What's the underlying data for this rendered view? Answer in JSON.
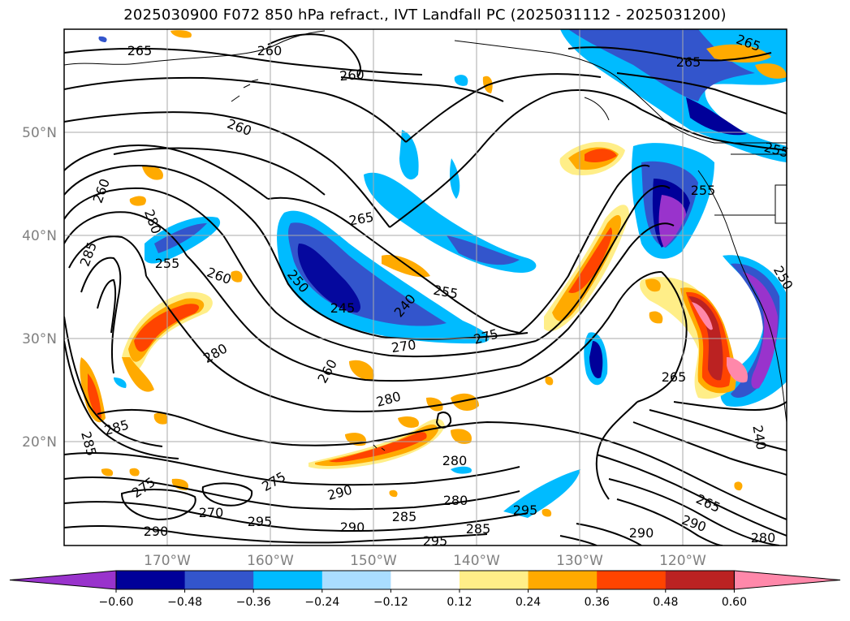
{
  "title": "2025030900 F072 850 hPa refract., IVT Landfall PC (2025031112 - 2025031200)",
  "lat_labels": [
    "50°N",
    "40°N",
    "30°N",
    "20°N"
  ],
  "lon_labels": [
    "170°W",
    "160°W",
    "150°W",
    "140°W",
    "130°W",
    "120°W"
  ],
  "colorbar": {
    "ticks": [
      "−0.60",
      "−0.48",
      "−0.36",
      "−0.24",
      "−0.12",
      "0.12",
      "0.24",
      "0.36",
      "0.48",
      "0.60"
    ],
    "colors": [
      "#9933cc",
      "#000099",
      "#3355cc",
      "#00bbff",
      "#aaddff",
      "#ffffff",
      "#ffee88",
      "#ffaa00",
      "#ff4400",
      "#bb2222",
      "#ff88aa"
    ]
  },
  "contour_labels": [
    "265",
    "260",
    "260",
    "260",
    "265",
    "265",
    "280",
    "285",
    "255",
    "260",
    "250",
    "245",
    "240",
    "255",
    "275",
    "270",
    "280",
    "280",
    "260",
    "285",
    "285",
    "275",
    "270",
    "275",
    "290",
    "295",
    "290",
    "285",
    "280",
    "285",
    "290",
    "280",
    "295",
    "290",
    "295",
    "265",
    "290",
    "280",
    "265",
    "255",
    "265",
    "255",
    "240",
    "250",
    "260"
  ],
  "colors": {
    "land_line": "#000000",
    "grid": "#aaaaaa"
  }
}
